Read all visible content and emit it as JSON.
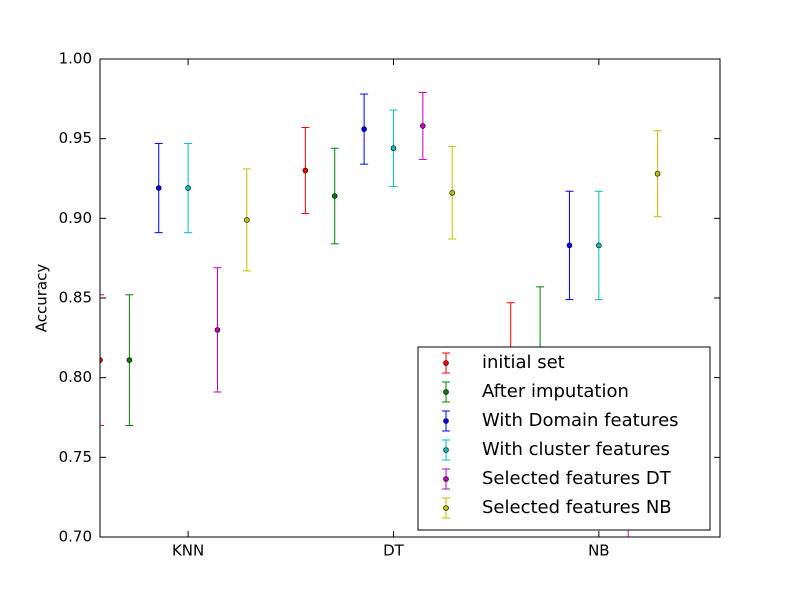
{
  "chart_data": {
    "type": "errorbar",
    "y_label": "Accuracy",
    "xlim": [
      0.571,
      3.59
    ],
    "xticks": [
      {
        "value": 1,
        "label": "KNN"
      },
      {
        "value": 2,
        "label": "DT"
      },
      {
        "value": 3,
        "label": "NB"
      }
    ],
    "ylim": [
      0.7,
      1.0
    ],
    "yticks": [
      {
        "value": 0.7,
        "label": "0.70"
      },
      0.75,
      {
        "value": 0.8,
        "label": "0.80"
      },
      0.85,
      {
        "value": 0.9,
        "label": "0.90"
      },
      0.95,
      {
        "value": 1.0,
        "label": "1.00"
      }
    ],
    "legend": "lower right",
    "series": [
      {
        "name": "initial set",
        "color": "#ff0000",
        "x": [
          0.571,
          1.571,
          2.571
        ],
        "values": [
          0.811,
          0.93,
          0.81
        ],
        "errors": [
          0.041,
          0.027,
          0.037
        ]
      },
      {
        "name": "After imputation",
        "color": "#008000",
        "x": [
          0.714,
          1.714,
          2.714
        ],
        "values": [
          0.811,
          0.914,
          0.815
        ],
        "errors": [
          0.041,
          0.03,
          0.042
        ]
      },
      {
        "name": "With Domain features",
        "color": "#0000ff",
        "x": [
          0.857,
          1.857,
          2.857
        ],
        "values": [
          0.919,
          0.956,
          0.883
        ],
        "errors": [
          0.028,
          0.022,
          0.034
        ]
      },
      {
        "name": "With cluster features",
        "color": "#00bfbf",
        "x": [
          1,
          2,
          3
        ],
        "values": [
          0.919,
          0.944,
          0.883
        ],
        "errors": [
          0.028,
          0.024,
          0.034
        ]
      },
      {
        "name": "Selected features DT",
        "color": "#bf00bf",
        "x": [
          1.143,
          2.143,
          3.143
        ],
        "values": [
          0.83,
          0.958,
          0.69
        ],
        "errors": [
          0.039,
          0.021,
          0.03
        ]
      },
      {
        "name": "Selected features NB",
        "color": "#bfbf00",
        "x": [
          1.286,
          2.286,
          3.286
        ],
        "values": [
          0.899,
          0.916,
          0.928
        ],
        "errors": [
          0.032,
          0.029,
          0.027
        ]
      }
    ]
  }
}
